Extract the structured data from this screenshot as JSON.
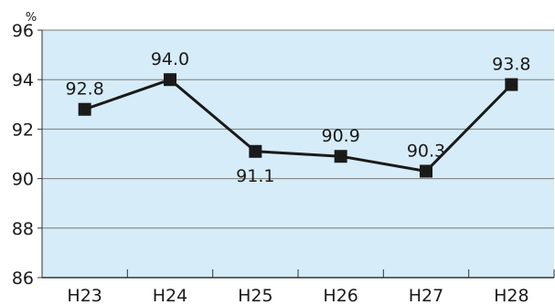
{
  "chart_data": {
    "type": "line",
    "title": "",
    "xlabel": "",
    "ylabel": "%",
    "categories": [
      "H23",
      "H24",
      "H25",
      "H26",
      "H27",
      "H28"
    ],
    "series": [
      {
        "values": [
          92.8,
          94.0,
          91.1,
          90.9,
          90.3,
          93.8
        ],
        "data_labels": [
          "92.8",
          "94.0",
          "91.1",
          "90.9",
          "90.3",
          "93.8"
        ]
      }
    ],
    "ylim": [
      86,
      96
    ],
    "yticks": [
      {
        "value": 86,
        "label": "86"
      },
      {
        "value": 88,
        "label": "88"
      },
      {
        "value": 90,
        "label": "90"
      },
      {
        "value": 92,
        "label": "92"
      },
      {
        "value": 94,
        "label": "94"
      },
      {
        "value": 96,
        "label": "96"
      }
    ],
    "grid": true,
    "legend": "none",
    "colors": {
      "plot_background": "#d6ecf8",
      "grid": "#7a7a7a",
      "axis": "#333333",
      "line": "#1a1a1a",
      "marker": "#1a1a1a"
    }
  }
}
